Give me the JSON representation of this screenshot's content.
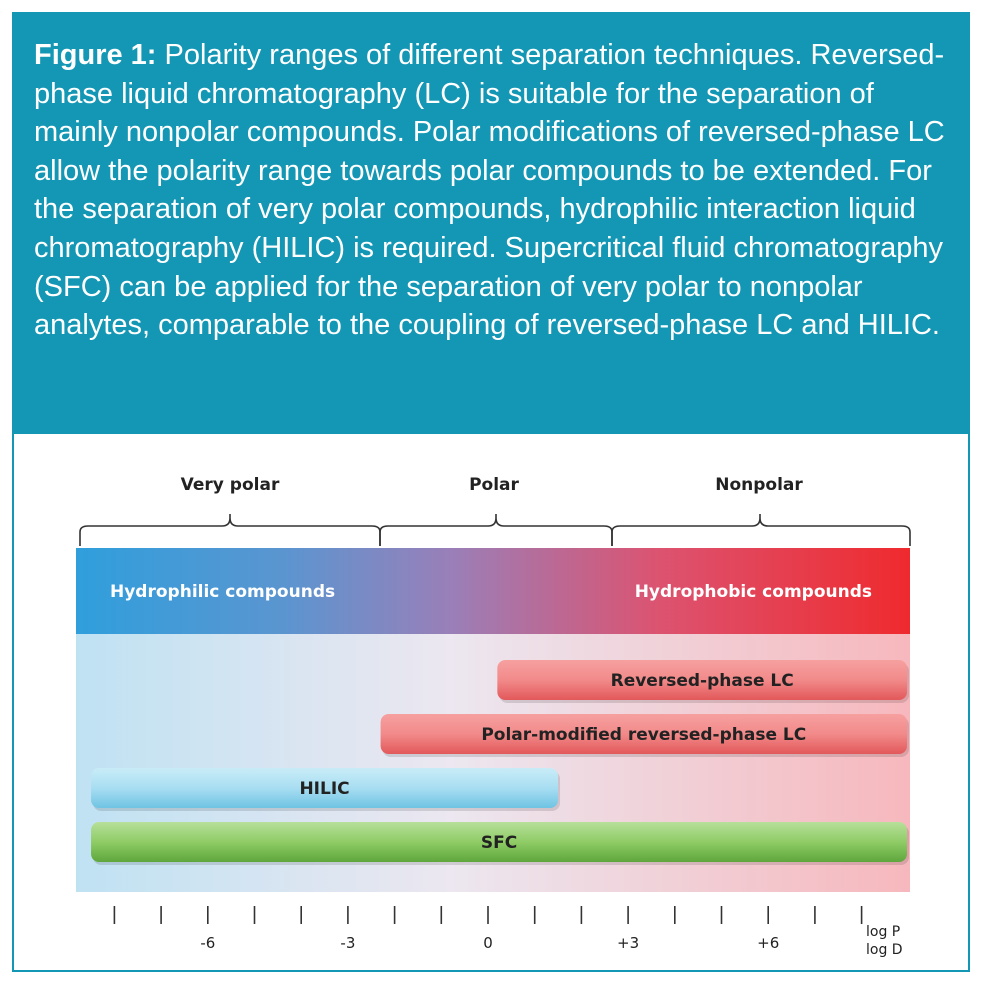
{
  "caption": {
    "label": "Figure 1:",
    "text": " Polarity ranges of different separation techniques. Reversed-phase liquid chromatography (LC) is suitable for the separation of mainly nonpolar compounds. Polar modifications of reversed-phase LC allow the polarity range towards polar compounds to be extended. For the separation of very polar compounds, hydrophilic interaction liquid chromatography (HILIC) is required. Supercritical fluid chromatography (SFC) can be applied for the separation of very polar to nonpolar analytes, comparable to the coupling of reversed-phase LC and HILIC."
  },
  "colors": {
    "caption_bg": "#1497b4",
    "hydrophilic": "#2fa0dc",
    "hydrophobic": "#ee2a2e",
    "red_bar": "#e84a4a",
    "hilic_bar": "#8fd3ec",
    "sfc_bar": "#7bbf50"
  },
  "polarity_groups": [
    "Very polar",
    "Polar",
    "Nonpolar"
  ],
  "band": {
    "left": "Hydrophilic compounds",
    "right": "Hydrophobic compounds"
  },
  "axis": {
    "min": -8.5,
    "max": 9.5,
    "tick_labels": [
      "-6",
      "-3",
      "0",
      "+3",
      "+6"
    ],
    "unit_line1": "log P",
    "unit_line2": "log D"
  },
  "techniques": [
    {
      "name": "Reversed-phase LC",
      "start": 0.2,
      "end": 9.4,
      "color": "red"
    },
    {
      "name": "Polar-modified reversed-phase LC",
      "start": -2.3,
      "end": 9.4,
      "color": "red"
    },
    {
      "name": "HILIC",
      "start": -8.5,
      "end": 1.5,
      "color": "hilic"
    },
    {
      "name": "SFC",
      "start": -8.5,
      "end": 9.4,
      "color": "sfc"
    }
  ]
}
